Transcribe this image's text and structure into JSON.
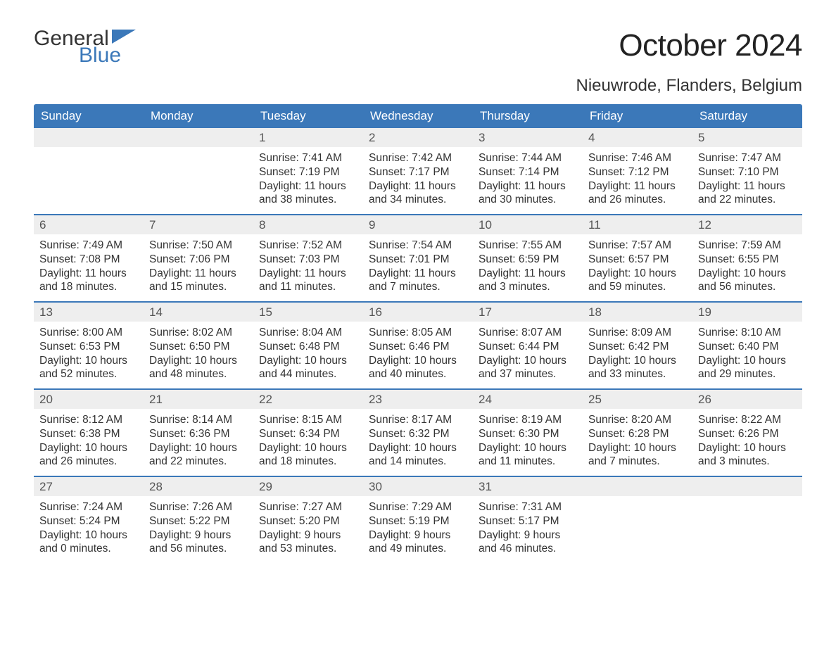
{
  "logo": {
    "text_general": "General",
    "text_blue": "Blue",
    "flag_color": "#3b78b9"
  },
  "title": "October 2024",
  "location": "Nieuwrode, Flanders, Belgium",
  "colors": {
    "header_bg": "#3b78b9",
    "header_text": "#ffffff",
    "daynum_bg": "#eeeeee",
    "week_divider": "#3b78b9",
    "body_text": "#333333",
    "page_bg": "#ffffff"
  },
  "fonts": {
    "title_size_pt": 33,
    "location_size_pt": 18,
    "dow_size_pt": 13,
    "daynum_size_pt": 13,
    "body_size_pt": 12
  },
  "days_of_week": [
    "Sunday",
    "Monday",
    "Tuesday",
    "Wednesday",
    "Thursday",
    "Friday",
    "Saturday"
  ],
  "labels": {
    "sunrise": "Sunrise",
    "sunset": "Sunset",
    "daylight": "Daylight"
  },
  "weeks": [
    [
      null,
      null,
      {
        "n": "1",
        "sr": "7:41 AM",
        "ss": "7:19 PM",
        "dl": "11 hours and 38 minutes."
      },
      {
        "n": "2",
        "sr": "7:42 AM",
        "ss": "7:17 PM",
        "dl": "11 hours and 34 minutes."
      },
      {
        "n": "3",
        "sr": "7:44 AM",
        "ss": "7:14 PM",
        "dl": "11 hours and 30 minutes."
      },
      {
        "n": "4",
        "sr": "7:46 AM",
        "ss": "7:12 PM",
        "dl": "11 hours and 26 minutes."
      },
      {
        "n": "5",
        "sr": "7:47 AM",
        "ss": "7:10 PM",
        "dl": "11 hours and 22 minutes."
      }
    ],
    [
      {
        "n": "6",
        "sr": "7:49 AM",
        "ss": "7:08 PM",
        "dl": "11 hours and 18 minutes."
      },
      {
        "n": "7",
        "sr": "7:50 AM",
        "ss": "7:06 PM",
        "dl": "11 hours and 15 minutes."
      },
      {
        "n": "8",
        "sr": "7:52 AM",
        "ss": "7:03 PM",
        "dl": "11 hours and 11 minutes."
      },
      {
        "n": "9",
        "sr": "7:54 AM",
        "ss": "7:01 PM",
        "dl": "11 hours and 7 minutes."
      },
      {
        "n": "10",
        "sr": "7:55 AM",
        "ss": "6:59 PM",
        "dl": "11 hours and 3 minutes."
      },
      {
        "n": "11",
        "sr": "7:57 AM",
        "ss": "6:57 PM",
        "dl": "10 hours and 59 minutes."
      },
      {
        "n": "12",
        "sr": "7:59 AM",
        "ss": "6:55 PM",
        "dl": "10 hours and 56 minutes."
      }
    ],
    [
      {
        "n": "13",
        "sr": "8:00 AM",
        "ss": "6:53 PM",
        "dl": "10 hours and 52 minutes."
      },
      {
        "n": "14",
        "sr": "8:02 AM",
        "ss": "6:50 PM",
        "dl": "10 hours and 48 minutes."
      },
      {
        "n": "15",
        "sr": "8:04 AM",
        "ss": "6:48 PM",
        "dl": "10 hours and 44 minutes."
      },
      {
        "n": "16",
        "sr": "8:05 AM",
        "ss": "6:46 PM",
        "dl": "10 hours and 40 minutes."
      },
      {
        "n": "17",
        "sr": "8:07 AM",
        "ss": "6:44 PM",
        "dl": "10 hours and 37 minutes."
      },
      {
        "n": "18",
        "sr": "8:09 AM",
        "ss": "6:42 PM",
        "dl": "10 hours and 33 minutes."
      },
      {
        "n": "19",
        "sr": "8:10 AM",
        "ss": "6:40 PM",
        "dl": "10 hours and 29 minutes."
      }
    ],
    [
      {
        "n": "20",
        "sr": "8:12 AM",
        "ss": "6:38 PM",
        "dl": "10 hours and 26 minutes."
      },
      {
        "n": "21",
        "sr": "8:14 AM",
        "ss": "6:36 PM",
        "dl": "10 hours and 22 minutes."
      },
      {
        "n": "22",
        "sr": "8:15 AM",
        "ss": "6:34 PM",
        "dl": "10 hours and 18 minutes."
      },
      {
        "n": "23",
        "sr": "8:17 AM",
        "ss": "6:32 PM",
        "dl": "10 hours and 14 minutes."
      },
      {
        "n": "24",
        "sr": "8:19 AM",
        "ss": "6:30 PM",
        "dl": "10 hours and 11 minutes."
      },
      {
        "n": "25",
        "sr": "8:20 AM",
        "ss": "6:28 PM",
        "dl": "10 hours and 7 minutes."
      },
      {
        "n": "26",
        "sr": "8:22 AM",
        "ss": "6:26 PM",
        "dl": "10 hours and 3 minutes."
      }
    ],
    [
      {
        "n": "27",
        "sr": "7:24 AM",
        "ss": "5:24 PM",
        "dl": "10 hours and 0 minutes."
      },
      {
        "n": "28",
        "sr": "7:26 AM",
        "ss": "5:22 PM",
        "dl": "9 hours and 56 minutes."
      },
      {
        "n": "29",
        "sr": "7:27 AM",
        "ss": "5:20 PM",
        "dl": "9 hours and 53 minutes."
      },
      {
        "n": "30",
        "sr": "7:29 AM",
        "ss": "5:19 PM",
        "dl": "9 hours and 49 minutes."
      },
      {
        "n": "31",
        "sr": "7:31 AM",
        "ss": "5:17 PM",
        "dl": "9 hours and 46 minutes."
      },
      null,
      null
    ]
  ]
}
